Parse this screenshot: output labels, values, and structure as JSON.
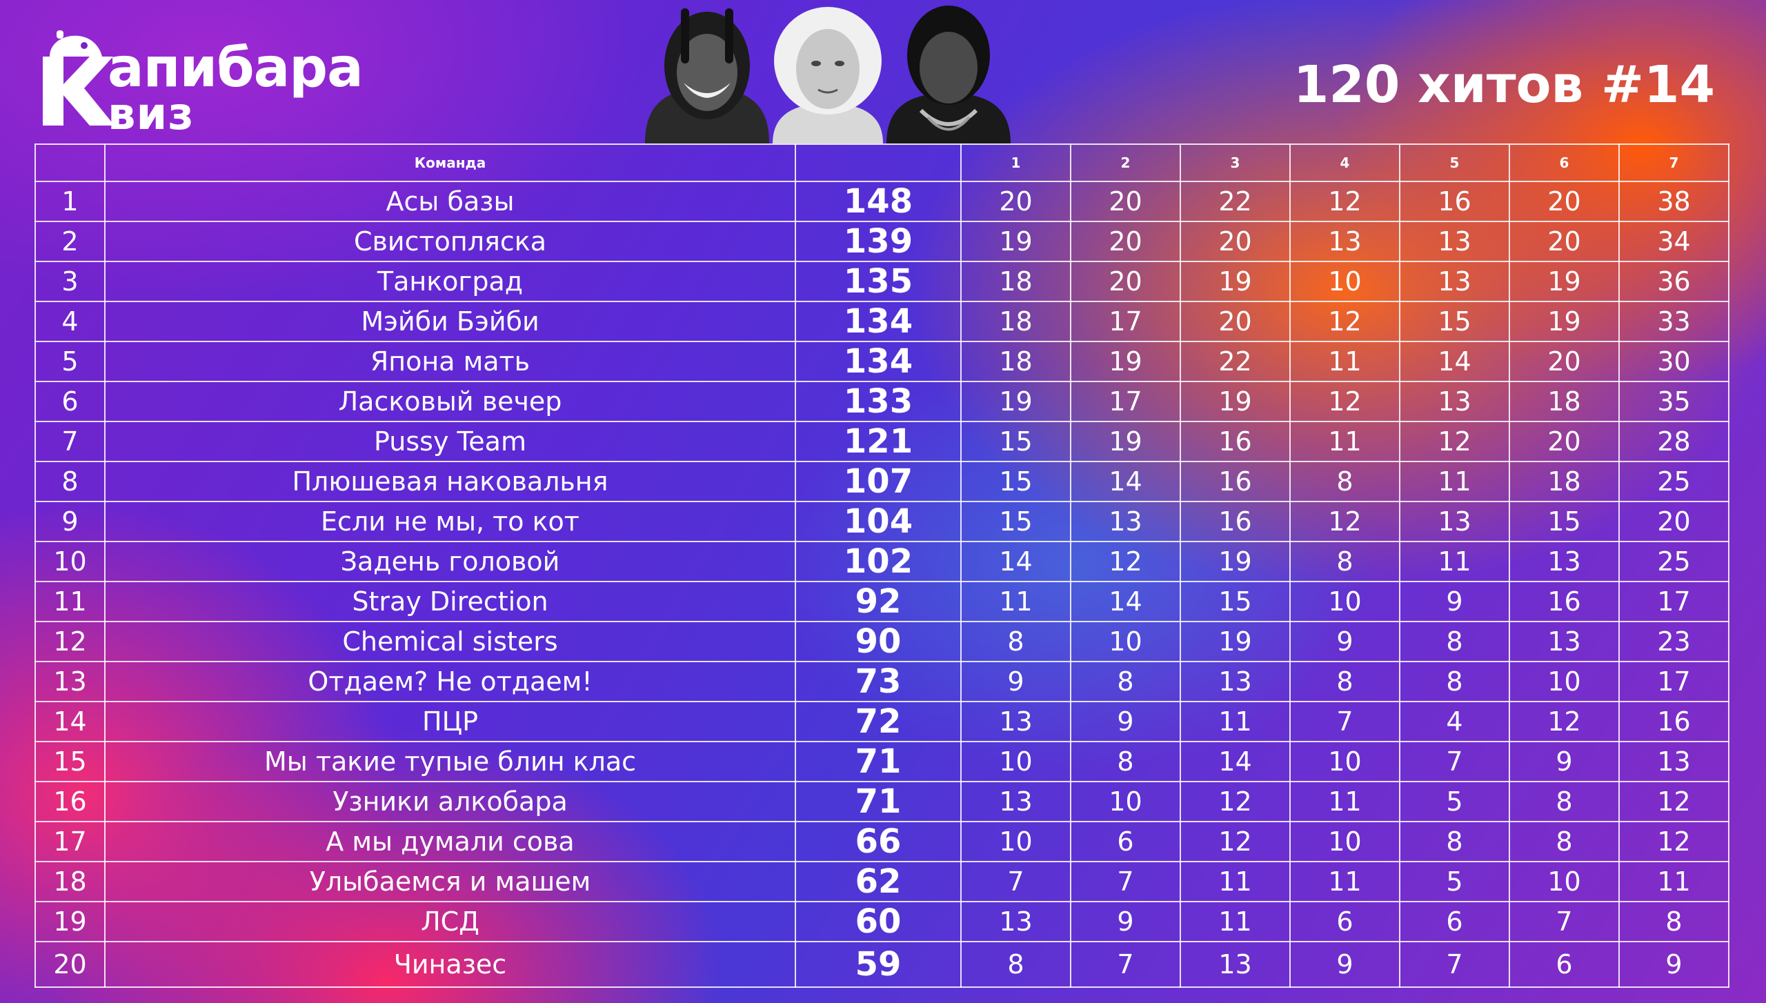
{
  "brand": {
    "line1": "апибара",
    "line2": "виз",
    "initial": "К"
  },
  "event_title": "120 хитов #14",
  "table": {
    "headers": {
      "place": "",
      "team": "Команда",
      "total": "",
      "rounds": [
        "1",
        "2",
        "3",
        "4",
        "5",
        "6",
        "7"
      ]
    },
    "rows": [
      {
        "place": "1",
        "team": "Асы базы",
        "total": "148",
        "rounds": [
          "20",
          "20",
          "22",
          "12",
          "16",
          "20",
          "38"
        ]
      },
      {
        "place": "2",
        "team": "Свистопляска",
        "total": "139",
        "rounds": [
          "19",
          "20",
          "20",
          "13",
          "13",
          "20",
          "34"
        ]
      },
      {
        "place": "3",
        "team": "Танкоград",
        "total": "135",
        "rounds": [
          "18",
          "20",
          "19",
          "10",
          "13",
          "19",
          "36"
        ]
      },
      {
        "place": "4",
        "team": "Мэйби Бэйби",
        "total": "134",
        "rounds": [
          "18",
          "17",
          "20",
          "12",
          "15",
          "19",
          "33"
        ]
      },
      {
        "place": "5",
        "team": "Япона мать",
        "total": "134",
        "rounds": [
          "18",
          "19",
          "22",
          "11",
          "14",
          "20",
          "30"
        ]
      },
      {
        "place": "6",
        "team": "Ласковый вечер",
        "total": "133",
        "rounds": [
          "19",
          "17",
          "19",
          "12",
          "13",
          "18",
          "35"
        ]
      },
      {
        "place": "7",
        "team": "Pussy Team",
        "total": "121",
        "rounds": [
          "15",
          "19",
          "16",
          "11",
          "12",
          "20",
          "28"
        ]
      },
      {
        "place": "8",
        "team": "Плюшевая наковальня",
        "total": "107",
        "rounds": [
          "15",
          "14",
          "16",
          "8",
          "11",
          "18",
          "25"
        ]
      },
      {
        "place": "9",
        "team": "Если не мы, то кот",
        "total": "104",
        "rounds": [
          "15",
          "13",
          "16",
          "12",
          "13",
          "15",
          "20"
        ]
      },
      {
        "place": "10",
        "team": "Задень головой",
        "total": "102",
        "rounds": [
          "14",
          "12",
          "19",
          "8",
          "11",
          "13",
          "25"
        ]
      },
      {
        "place": "11",
        "team": "Stray Direction",
        "total": "92",
        "rounds": [
          "11",
          "14",
          "15",
          "10",
          "9",
          "16",
          "17"
        ]
      },
      {
        "place": "12",
        "team": "Chemical sisters",
        "total": "90",
        "rounds": [
          "8",
          "10",
          "19",
          "9",
          "8",
          "13",
          "23"
        ]
      },
      {
        "place": "13",
        "team": "Отдаем? Не отдаем!",
        "total": "73",
        "rounds": [
          "9",
          "8",
          "13",
          "8",
          "8",
          "10",
          "17"
        ]
      },
      {
        "place": "14",
        "team": "ПЦР",
        "total": "72",
        "rounds": [
          "13",
          "9",
          "11",
          "7",
          "4",
          "12",
          "16"
        ]
      },
      {
        "place": "15",
        "team": "Мы такие тупые блин клас",
        "total": "71",
        "rounds": [
          "10",
          "8",
          "14",
          "10",
          "7",
          "9",
          "13"
        ]
      },
      {
        "place": "16",
        "team": "Узники алкобара",
        "total": "71",
        "rounds": [
          "13",
          "10",
          "12",
          "11",
          "5",
          "8",
          "12"
        ]
      },
      {
        "place": "17",
        "team": "А мы думали сова",
        "total": "66",
        "rounds": [
          "10",
          "6",
          "12",
          "10",
          "8",
          "8",
          "12"
        ]
      },
      {
        "place": "18",
        "team": "Улыбаемся и машем",
        "total": "62",
        "rounds": [
          "7",
          "7",
          "11",
          "11",
          "5",
          "10",
          "11"
        ]
      },
      {
        "place": "19",
        "team": "ЛСД",
        "total": "60",
        "rounds": [
          "13",
          "9",
          "11",
          "6",
          "6",
          "7",
          "8"
        ]
      },
      {
        "place": "20",
        "team": "Чиназес",
        "total": "59",
        "rounds": [
          "8",
          "7",
          "13",
          "9",
          "7",
          "6",
          "9"
        ]
      }
    ]
  },
  "colors": {
    "background_primary": "#5b2ad6",
    "accent_orange": "#ff6a14",
    "accent_pink": "#ff2d6e",
    "text": "#ffffff"
  },
  "icons": {
    "logo": "capybara-logo",
    "portraits": [
      "portrait-icon",
      "portrait-icon",
      "portrait-icon"
    ]
  }
}
